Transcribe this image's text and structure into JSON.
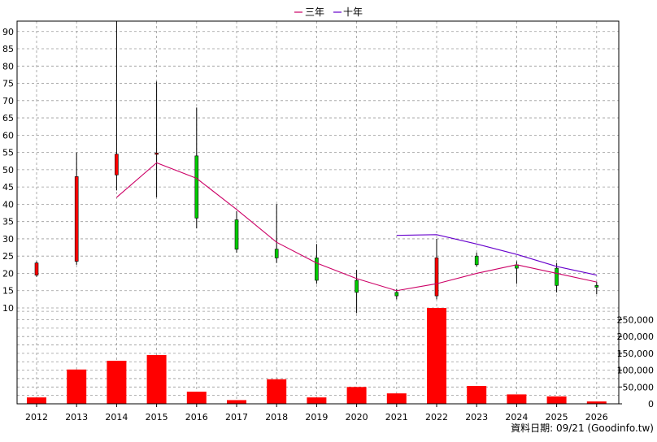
{
  "legend": {
    "items": [
      {
        "label": "三年",
        "color": "#CC0066"
      },
      {
        "label": "十年",
        "color": "#6600CC"
      }
    ]
  },
  "footer": {
    "source": "資料日期: 09/21  (Goodinfo.tw)"
  },
  "colors": {
    "up": "#FF0000",
    "down": "#00CC00",
    "volume": "#FF0000",
    "grid": "#999999",
    "ma3": "#CC0066",
    "ma10": "#6600CC"
  },
  "chart_data": [
    {
      "type": "candlestick",
      "categories": [
        "2012",
        "2013",
        "2014",
        "2015",
        "2016",
        "2017",
        "2018",
        "2019",
        "2020",
        "2021",
        "2022",
        "2023",
        "2024",
        "2025",
        "2026"
      ],
      "ylim": [
        10,
        93
      ],
      "yticks": [
        10,
        15,
        20,
        25,
        30,
        35,
        40,
        45,
        50,
        55,
        60,
        65,
        70,
        75,
        80,
        85,
        90
      ],
      "grid": true,
      "legend_position": "top-center",
      "candles": [
        {
          "x": "2012",
          "open": 19.5,
          "close": 23.0,
          "high": 23.5,
          "low": 19.0
        },
        {
          "x": "2013",
          "open": 23.5,
          "close": 48.0,
          "high": 55.0,
          "low": 22.5
        },
        {
          "x": "2014",
          "open": 48.5,
          "close": 54.5,
          "high": 93.0,
          "low": 44.0
        },
        {
          "x": "2015",
          "open": 54.5,
          "close": 54.8,
          "high": 75.5,
          "low": 42.0
        },
        {
          "x": "2016",
          "open": 54.0,
          "close": 36.0,
          "high": 68.0,
          "low": 33.0
        },
        {
          "x": "2017",
          "open": 35.5,
          "close": 27.0,
          "high": 38.0,
          "low": 26.0
        },
        {
          "x": "2018",
          "open": 27.0,
          "close": 24.5,
          "high": 40.0,
          "low": 23.0
        },
        {
          "x": "2019",
          "open": 24.5,
          "close": 18.0,
          "high": 28.5,
          "low": 17.0
        },
        {
          "x": "2020",
          "open": 18.0,
          "close": 14.5,
          "high": 21.0,
          "low": 8.5
        },
        {
          "x": "2021",
          "open": 14.5,
          "close": 13.5,
          "high": 15.5,
          "low": 12.5
        },
        {
          "x": "2022",
          "open": 13.5,
          "close": 24.5,
          "high": 30.0,
          "low": 12.5
        },
        {
          "x": "2023",
          "open": 25.0,
          "close": 22.5,
          "high": 26.0,
          "low": 22.0
        },
        {
          "x": "2024",
          "open": 22.5,
          "close": 21.5,
          "high": 23.5,
          "low": 17.0
        },
        {
          "x": "2025",
          "open": 21.5,
          "close": 16.5,
          "high": 23.0,
          "low": 14.5
        },
        {
          "x": "2026",
          "open": 16.5,
          "close": 16.0,
          "high": 17.5,
          "low": 14.0
        }
      ],
      "series": [
        {
          "name": "三年",
          "x": [
            "2014",
            "2015",
            "2016",
            "2017",
            "2018",
            "2019",
            "2020",
            "2021",
            "2022",
            "2023",
            "2024",
            "2025",
            "2026"
          ],
          "values": [
            42.0,
            52.0,
            47.5,
            38.5,
            29.0,
            23.0,
            18.5,
            15.0,
            17.0,
            20.0,
            22.5,
            20.0,
            17.5
          ]
        },
        {
          "name": "十年",
          "x": [
            "2021",
            "2022",
            "2023",
            "2024",
            "2025",
            "2026"
          ],
          "values": [
            31.0,
            31.2,
            28.5,
            25.5,
            22.0,
            19.5
          ]
        }
      ]
    },
    {
      "type": "bar",
      "categories": [
        "2012",
        "2013",
        "2014",
        "2015",
        "2016",
        "2017",
        "2018",
        "2019",
        "2020",
        "2021",
        "2022",
        "2023",
        "2024",
        "2025",
        "2026"
      ],
      "values": [
        19000,
        102000,
        128000,
        145000,
        36000,
        11000,
        73000,
        19000,
        50000,
        31000,
        285000,
        53000,
        28000,
        22000,
        7000
      ],
      "ylim": [
        0,
        285000
      ],
      "yticks": [
        "0",
        "50,000",
        "100,000",
        "150,000",
        "200,000",
        "250,000"
      ],
      "ytick_values": [
        0,
        50000,
        100000,
        150000,
        200000,
        250000
      ],
      "grid": true
    }
  ]
}
